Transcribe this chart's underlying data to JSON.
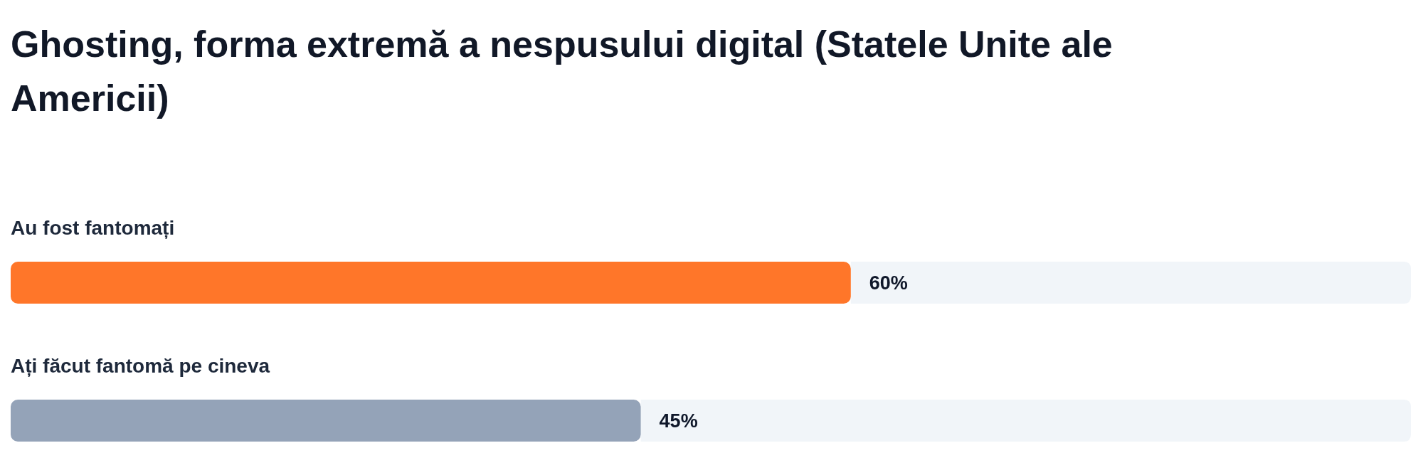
{
  "chart_data": {
    "type": "bar",
    "orientation": "horizontal",
    "title": "Ghosting, forma extremă a nespusului digital (Statele Unite ale Americii)",
    "categories": [
      "Au fost fantomați",
      "Ați făcut fantomă pe cineva"
    ],
    "values": [
      60,
      45
    ],
    "colors": [
      "#ff7629",
      "#94a3b8"
    ],
    "xlim": [
      0,
      100
    ],
    "data_labels": true,
    "value_labels": [
      "60%",
      "45%"
    ]
  }
}
